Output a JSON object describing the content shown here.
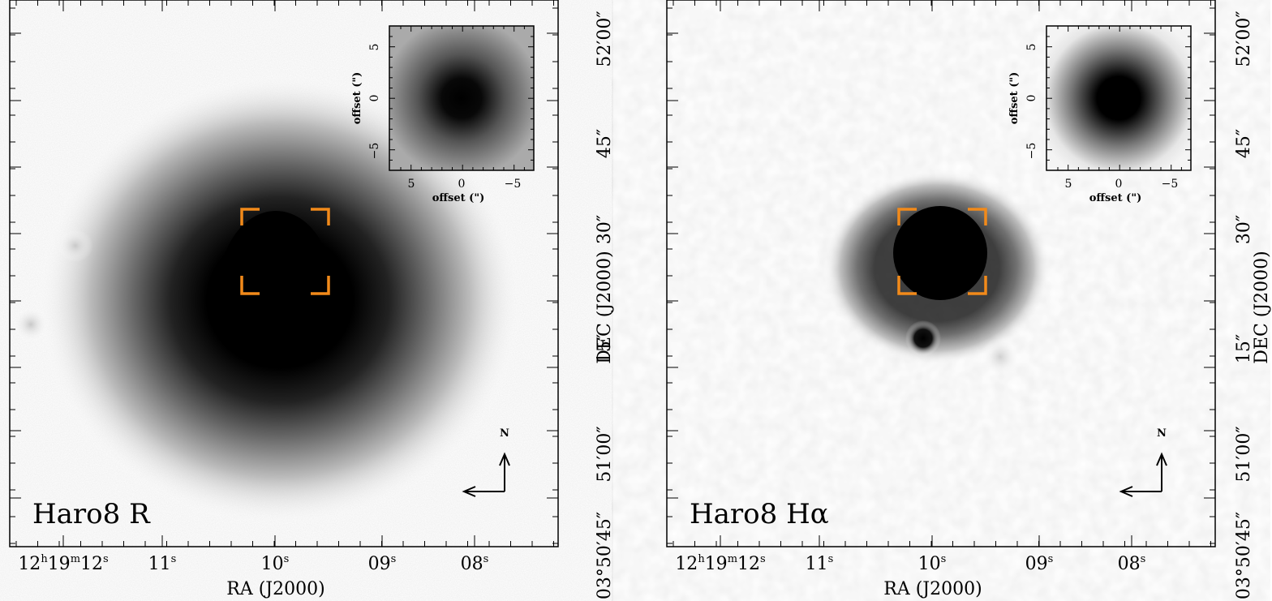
{
  "panels": [
    {
      "label": "Haro8 R",
      "image": "R-band galaxy image",
      "inset_xlabel": "offset (\")",
      "inset_ylabel": "offset (\")",
      "inset_xticks": [
        "5",
        "0",
        "−5"
      ],
      "inset_yticks": [
        "5",
        "0",
        "−5"
      ],
      "x_axis_label": "RA (J2000)",
      "y_axis_label": "DEC (J2000)",
      "ra_ticks": [
        {
          "main": "12",
          "sup": "h",
          "main2": "19",
          "sup2": "m",
          "main3": "12",
          "sup3": "s"
        },
        {
          "main": "11",
          "sup": "s"
        },
        {
          "main": "10",
          "sup": "s"
        },
        {
          "main": "09",
          "sup": "s"
        },
        {
          "main": "08",
          "sup": "s"
        }
      ],
      "dec_ticks": [
        "52′00″",
        "45″",
        "30″",
        "15″",
        "51′00″",
        "03°50′45″"
      ],
      "compass_n": "N"
    },
    {
      "label": "Haro8 Hα",
      "image": "H-alpha galaxy image",
      "inset_xlabel": "offset (\")",
      "inset_ylabel": "offset (\")",
      "inset_xticks": [
        "5",
        "0",
        "−5"
      ],
      "inset_yticks": [
        "5",
        "0",
        "−5"
      ],
      "x_axis_label": "RA (J2000)",
      "y_axis_label": "DEC (J2000)",
      "ra_ticks": [
        {
          "main": "12",
          "sup": "h",
          "main2": "19",
          "sup2": "m",
          "main3": "12",
          "sup3": "s"
        },
        {
          "main": "11",
          "sup": "s"
        },
        {
          "main": "10",
          "sup": "s"
        },
        {
          "main": "09",
          "sup": "s"
        },
        {
          "main": "08",
          "sup": "s"
        }
      ],
      "dec_ticks": [
        "52′00″",
        "45″",
        "30″",
        "15″",
        "51′00″",
        "03°50′45″"
      ],
      "compass_n": "N"
    }
  ],
  "colors": {
    "marker": "#f28a1a",
    "ink": "#000000"
  }
}
